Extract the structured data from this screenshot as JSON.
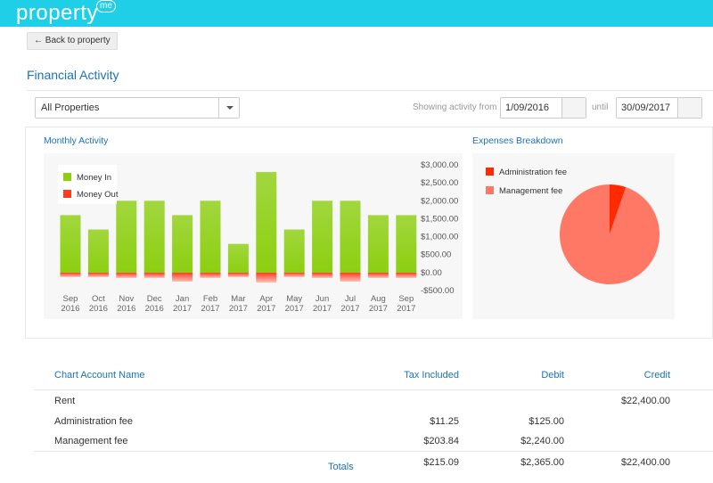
{
  "header": {
    "logo": "property",
    "logo_badge": "me"
  },
  "back_button": "← Back to property",
  "title": "Financial Activity",
  "filters": {
    "property": "All Properties",
    "from_label": "Showing activity from",
    "from": "1/09/2016",
    "until_label": "until",
    "until": "30/09/2017"
  },
  "chart_data": [
    {
      "type": "bar",
      "title": "Monthly Activity",
      "categories": [
        "Sep 2016",
        "Oct 2016",
        "Nov 2016",
        "Dec 2016",
        "Jan 2017",
        "Feb 2017",
        "Mar 2017",
        "Apr 2017",
        "May 2017",
        "Jun 2017",
        "Jul 2017",
        "Aug 2017",
        "Sep 2017"
      ],
      "series": [
        {
          "name": "Money In",
          "color": "#8ccf10",
          "values": [
            1600,
            1200,
            2000,
            2000,
            1600,
            2000,
            800,
            2800,
            1200,
            2000,
            2000,
            1600,
            1600
          ]
        },
        {
          "name": "Money Out",
          "color": "#ff3b1f",
          "values": [
            -125,
            -125,
            -150,
            -150,
            -250,
            -150,
            -125,
            -275,
            -125,
            -150,
            -250,
            -150,
            -150
          ]
        }
      ],
      "ylim": [
        -500,
        3000
      ],
      "yticks": [
        {
          "value": 3000,
          "label": "$3,000.00"
        },
        {
          "value": 2500,
          "label": "$2,500.00"
        },
        {
          "value": 2000,
          "label": "$2,000.00"
        },
        {
          "value": 1500,
          "label": "$1,500.00"
        },
        {
          "value": 1000,
          "label": "$1,000.00"
        },
        {
          "value": 500,
          "label": "$500.00"
        },
        {
          "value": 0,
          "label": "$0.00"
        },
        {
          "value": -500,
          "label": "-$500.00"
        }
      ],
      "legend": "top-left"
    },
    {
      "type": "pie",
      "title": "Expenses Breakdown",
      "categories": [
        "Administration fee",
        "Management fee"
      ],
      "values": [
        125,
        2240
      ],
      "colors": [
        "#ff2a00",
        "#ff7866"
      ],
      "legend": "top-left"
    }
  ],
  "table": {
    "columns": [
      "Chart Account Name",
      "Tax Included",
      "Debit",
      "Credit"
    ],
    "rows": [
      [
        "Rent",
        null,
        null,
        "$22,400.00"
      ],
      [
        "Administration fee",
        "$11.25",
        "$125.00",
        null
      ],
      [
        "Management fee",
        "$203.84",
        "$2,240.00",
        null
      ]
    ],
    "totals": [
      "Totals",
      "$215.09",
      "$2,365.00",
      "$22,400.00"
    ]
  }
}
